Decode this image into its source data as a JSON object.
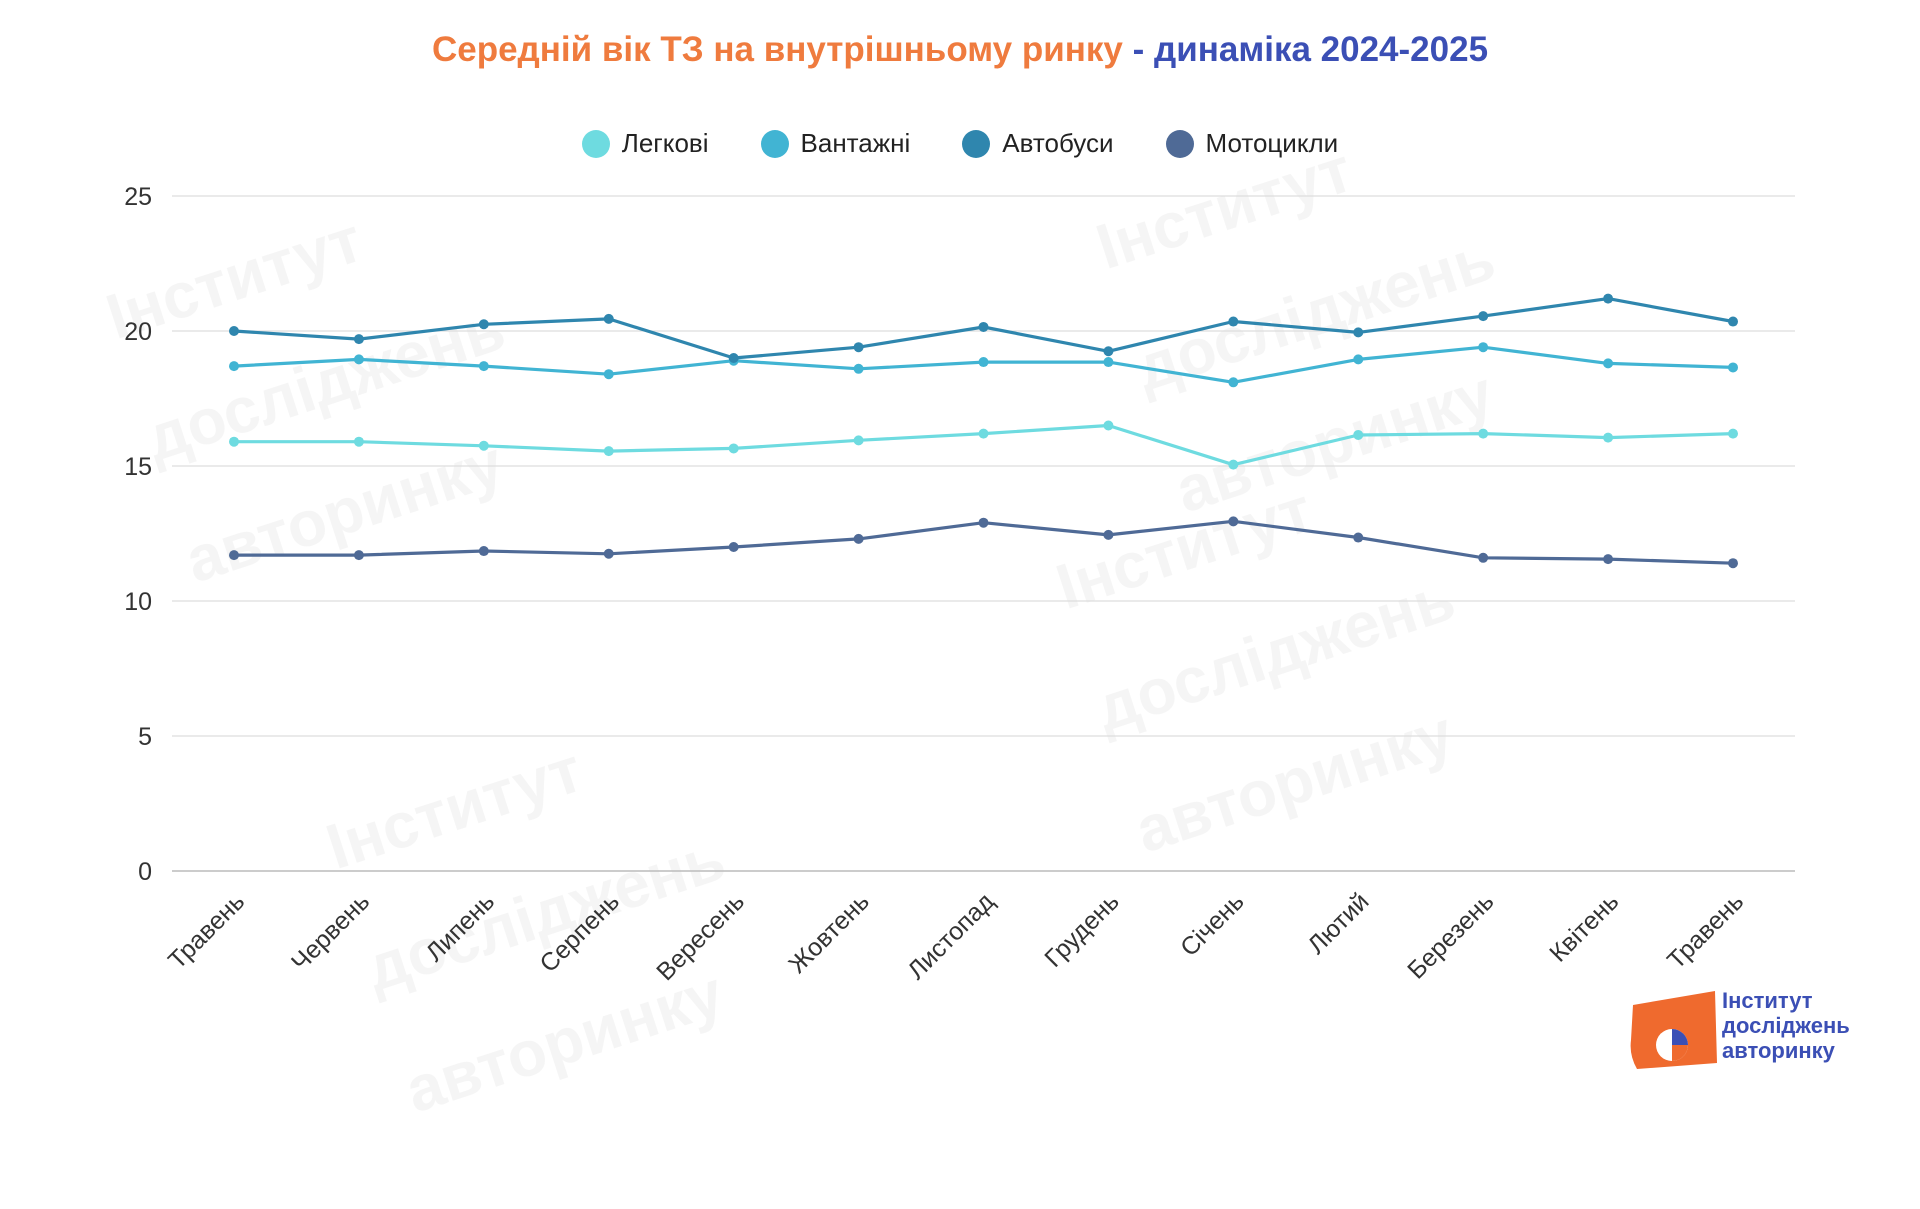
{
  "header": {
    "title_part1": "Середній вік ТЗ на внутрішньому ринку",
    "title_sep": " - ",
    "title_part2": "динаміка 2024-2025"
  },
  "colors": {
    "title_orange": "#EF7B3E",
    "title_blue": "#3B4FB5",
    "grid": "#DDDDDD"
  },
  "logo": {
    "line1": "Інститут",
    "line2": "досліджень",
    "line3": "авторинку",
    "color": "#3B4FB5",
    "accent": "#EF6A2E"
  },
  "watermark": {
    "line1": "Інститут",
    "line2": "досліджень",
    "line3": "авторинку"
  },
  "chart_data": {
    "type": "line",
    "title": "Середній вік ТЗ на внутрішньому ринку - динаміка 2024-2025",
    "xlabel": "",
    "ylabel": "",
    "ylim": [
      0,
      25
    ],
    "yticks": [
      0,
      5,
      10,
      15,
      20,
      25
    ],
    "grid": true,
    "legend_position": "top-center",
    "categories": [
      "Травень",
      "Червень",
      "Липень",
      "Серпень",
      "Вересень",
      "Жовтень",
      "Листопад",
      "Грудень",
      "Січень",
      "Лютий",
      "Березень",
      "Квітень",
      "Травень"
    ],
    "series": [
      {
        "name": "Легкові",
        "color": "#6EDBE0",
        "values": [
          15.9,
          15.9,
          15.75,
          15.55,
          15.65,
          15.95,
          16.2,
          16.5,
          15.05,
          16.15,
          16.2,
          16.05,
          16.2
        ]
      },
      {
        "name": "Вантажні",
        "color": "#41B4D3",
        "values": [
          18.7,
          18.95,
          18.7,
          18.4,
          18.9,
          18.6,
          18.85,
          18.85,
          18.1,
          18.95,
          19.4,
          18.8,
          18.65
        ]
      },
      {
        "name": "Автобуси",
        "color": "#2F86AE",
        "values": [
          20.0,
          19.7,
          20.25,
          20.45,
          19.0,
          19.4,
          20.15,
          19.25,
          20.35,
          19.95,
          20.55,
          21.2,
          20.35
        ]
      },
      {
        "name": "Мотоцикли",
        "color": "#4F6A96",
        "values": [
          11.7,
          11.7,
          11.85,
          11.75,
          12.0,
          12.3,
          12.9,
          12.45,
          12.95,
          12.35,
          11.6,
          11.55,
          11.4
        ]
      }
    ]
  }
}
